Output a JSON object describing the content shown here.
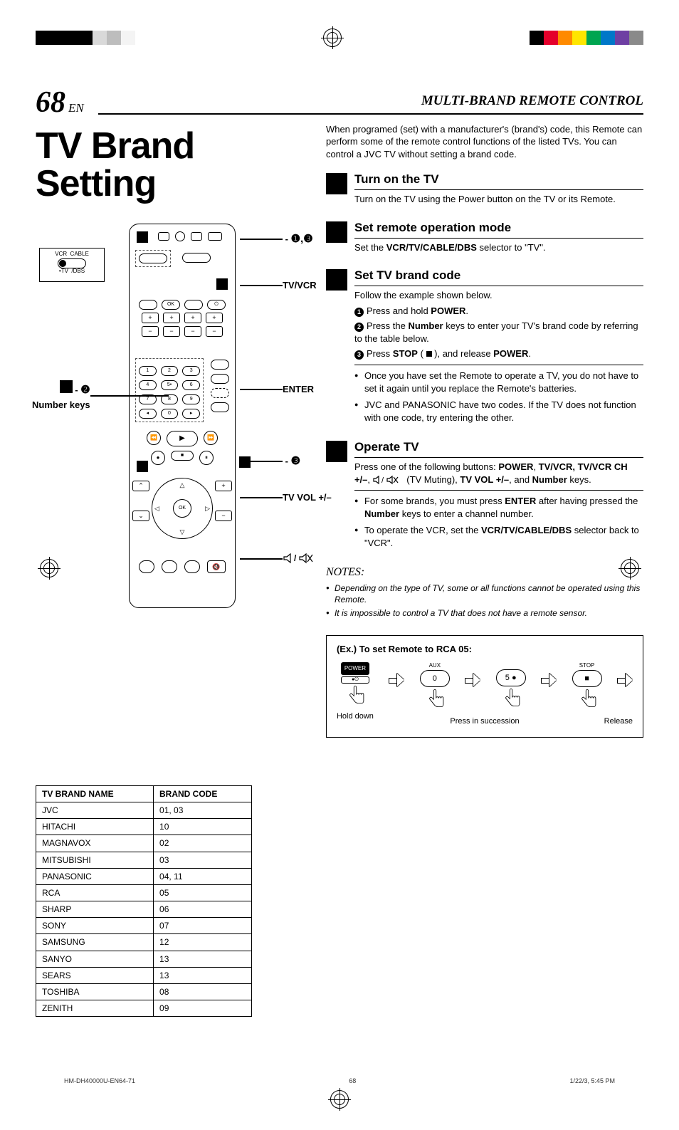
{
  "reg_colors_left": [
    "#000000",
    "#000000",
    "#000000",
    "#000000",
    "#d9d9d9",
    "#bdbdbd",
    "#f4f4f4"
  ],
  "reg_colors_right": [
    "#000000",
    "#e4002b",
    "#ff8a00",
    "#ffe600",
    "#00a550",
    "#0077c8",
    "#6e3fa3",
    "#8a8a8a"
  ],
  "page_number": "68",
  "page_lang": "EN",
  "section_header": "MULTI-BRAND REMOTE CONTROL",
  "main_title_l1": "TV Brand",
  "main_title_l2": "Setting",
  "intro": "When programed (set) with a manufacturer's (brand's) code, this Remote can perform some of the remote control functions of the listed TVs. You can control a JVC TV without setting a brand code.",
  "remote_labels": {
    "power_callout_a": "- ",
    "power_nums": "❶,❸",
    "tvvcr": "TV/VCR",
    "numkeys_a": "- ",
    "numkeys_num": "❷",
    "numkeys_txt": "Number keys",
    "enter": "ENTER",
    "stop_a": "- ",
    "stop_num": "❸",
    "tvvol": "TV VOL +/–",
    "mute": "🔇/🔈",
    "switch_l1": "VCR",
    "switch_l2": "CABLE",
    "switch_l3": "•TV",
    "switch_l4": "/DBS"
  },
  "steps": [
    {
      "title": "Turn on the TV",
      "body": "Turn on the TV using the Power button on the TV or its Remote."
    },
    {
      "title": "Set remote operation mode",
      "body_pre": "Set the ",
      "body_b": "VCR/TV/CABLE/DBS",
      "body_post": " selector to \"TV\"."
    },
    {
      "title": "Set TV brand code",
      "lead": "Follow the example shown below.",
      "sub": [
        {
          "pre": "Press and hold ",
          "b1": "POWER",
          "post": "."
        },
        {
          "pre": "Press the ",
          "b1": "Number",
          "mid": " keys to enter your TV's brand code by referring to the table below.",
          "post": ""
        },
        {
          "pre": "Press ",
          "b1": "STOP",
          "mid": " ( ",
          "stop": true,
          "mid2": " ), and release ",
          "b2": "POWER",
          "post": "."
        }
      ],
      "bullets": [
        "Once you have set the Remote to operate a TV, you do not have to set it again until you replace the Remote's batteries.",
        "JVC and PANASONIC have two codes. If the TV does not function with one code, try entering the other."
      ]
    },
    {
      "title": "Operate TV",
      "body_parts": {
        "a": "Press one of the following buttons: ",
        "b1": "POWER",
        "c": ", ",
        "b2": "TV/VCR, TV/VCR CH +/–",
        "d": ", ",
        "mute": true,
        "e": " (TV Muting), ",
        "b3": "TV VOL +/–",
        "f": ", and ",
        "b4": "Number",
        "g": " keys."
      },
      "bullets2": [
        {
          "a": "For some brands, you must press ",
          "b": "ENTER",
          "c": " after having pressed the ",
          "d": "Number",
          "e": " keys to enter a channel number."
        },
        {
          "a": "To operate the VCR, set the ",
          "b": "VCR/TV/CABLE/DBS",
          "c": " selector back to \"VCR\"."
        }
      ]
    }
  ],
  "notes_hd": "NOTES:",
  "notes": [
    "Depending on the type of TV, some or all functions cannot be operated using this Remote.",
    "It is impossible to control a TV that does not have a remote sensor."
  ],
  "brand_table": {
    "head": [
      "TV BRAND NAME",
      "BRAND CODE"
    ],
    "rows": [
      [
        "JVC",
        "01, 03"
      ],
      [
        "HITACHI",
        "10"
      ],
      [
        "MAGNAVOX",
        "02"
      ],
      [
        "MITSUBISHI",
        "03"
      ],
      [
        "PANASONIC",
        "04, 11"
      ],
      [
        "RCA",
        "05"
      ],
      [
        "SHARP",
        "06"
      ],
      [
        "SONY",
        "07"
      ],
      [
        "SAMSUNG",
        "12"
      ],
      [
        "SANYO",
        "13"
      ],
      [
        "SEARS",
        "13"
      ],
      [
        "TOSHIBA",
        "08"
      ],
      [
        "ZENITH",
        "09"
      ]
    ]
  },
  "example": {
    "title": "(Ex.)  To set Remote to RCA 05:",
    "power_label": "POWER",
    "aux_label": "AUX",
    "btn0": "0",
    "btn5": "5 ●",
    "stop_label": "STOP",
    "hold": "Hold down",
    "press": "Press in succession",
    "release": "Release"
  },
  "footer": {
    "file": "HM-DH40000U-EN64-71",
    "page": "68",
    "stamp": "1/22/3, 5:45 PM"
  }
}
